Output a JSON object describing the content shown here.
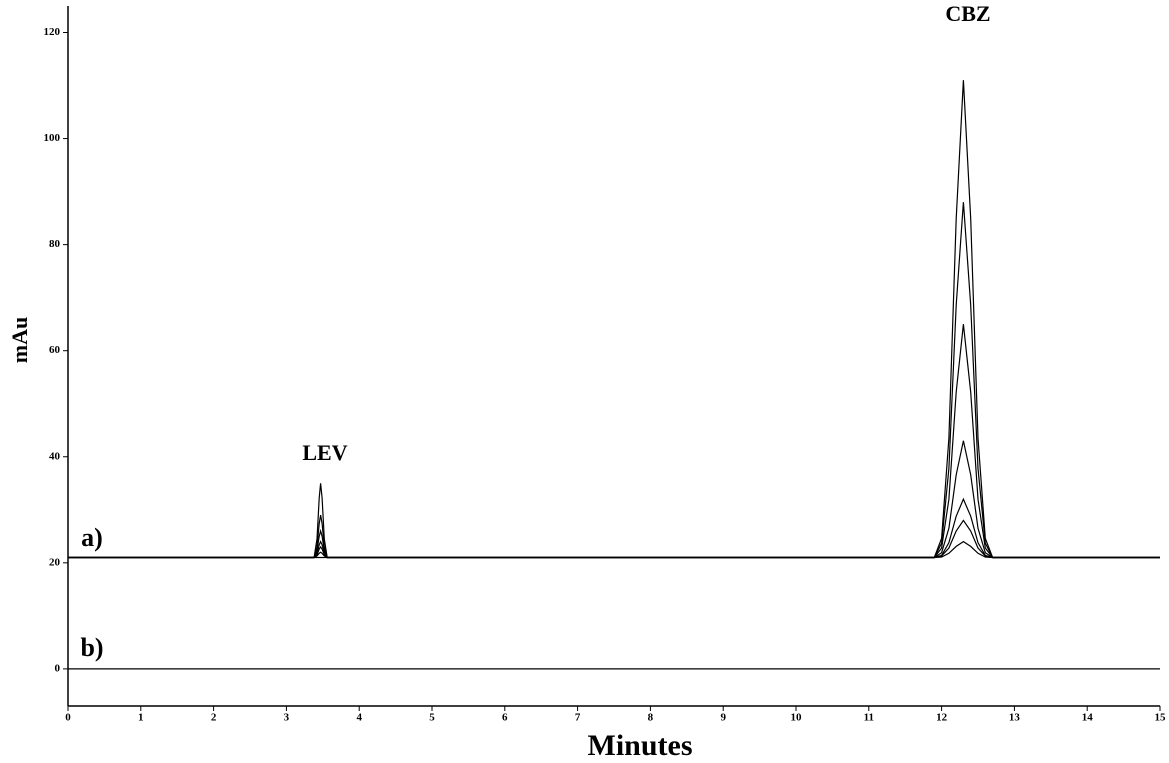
{
  "chart_data": {
    "type": "line",
    "x_label": "Minutes",
    "y_label": "mAu",
    "annotations": [
      "LEV",
      "CBZ",
      "a)",
      "b)"
    ],
    "x": [
      0,
      3.38,
      3.42,
      3.45,
      3.47,
      3.49,
      3.52,
      3.56,
      11.9,
      12.0,
      12.1,
      12.2,
      12.3,
      12.4,
      12.5,
      12.6,
      12.7,
      15
    ],
    "series": [
      {
        "color": "#000000",
        "values": [
          21,
          21,
          24.5,
          32.2,
          35,
          32.2,
          24.5,
          21,
          21,
          24.6,
          43.5,
          84.9,
          111,
          84.9,
          43.5,
          24.6,
          21,
          21
        ]
      },
      {
        "color": "#000000",
        "values": [
          21,
          21,
          23,
          27.4,
          29,
          27.4,
          23,
          21,
          21,
          23.7,
          37.8,
          68.6,
          88,
          68.6,
          37.8,
          23.7,
          21,
          21
        ]
      },
      {
        "color": "#000000",
        "values": [
          21,
          21,
          22.3,
          25,
          26,
          25,
          22.3,
          21,
          21,
          22.8,
          32,
          52.2,
          65,
          52.2,
          32,
          22.8,
          21,
          21
        ]
      },
      {
        "color": "#000000",
        "values": [
          21,
          21,
          21.8,
          23.4,
          24,
          23.4,
          21.8,
          21,
          21,
          21.9,
          26.5,
          36.6,
          43,
          36.6,
          26.5,
          21.9,
          21,
          21
        ]
      },
      {
        "color": "#000000",
        "values": [
          21,
          21,
          21.5,
          22.6,
          23,
          22.6,
          21.5,
          21,
          21,
          21.4,
          23.8,
          28.8,
          32,
          28.8,
          23.8,
          21.4,
          21,
          21
        ]
      },
      {
        "color": "#000000",
        "values": [
          21,
          21,
          21.3,
          21.8,
          22,
          21.8,
          21.3,
          21,
          21,
          21.3,
          22.8,
          26,
          28,
          26,
          22.8,
          21.3,
          21,
          21
        ]
      },
      {
        "color": "#000000",
        "values": [
          21,
          21,
          21,
          21,
          21,
          21,
          21,
          21,
          21,
          21.1,
          21.8,
          23.1,
          24,
          23.1,
          21.8,
          21.1,
          21,
          21
        ]
      },
      {
        "color": "#000000",
        "values": [
          0,
          0,
          0,
          0,
          0,
          0,
          0,
          0,
          0,
          0,
          0,
          0,
          0,
          0,
          0,
          0,
          0,
          0
        ]
      }
    ],
    "xlim": [
      0,
      15
    ],
    "xticks": [
      0,
      1,
      2,
      3,
      4,
      5,
      6,
      7,
      8,
      9,
      10,
      11,
      12,
      13,
      14,
      15
    ],
    "ylim": [
      -7,
      125
    ],
    "yticks": [
      0,
      20,
      40,
      60,
      80,
      100,
      120
    ],
    "grid": false
  }
}
